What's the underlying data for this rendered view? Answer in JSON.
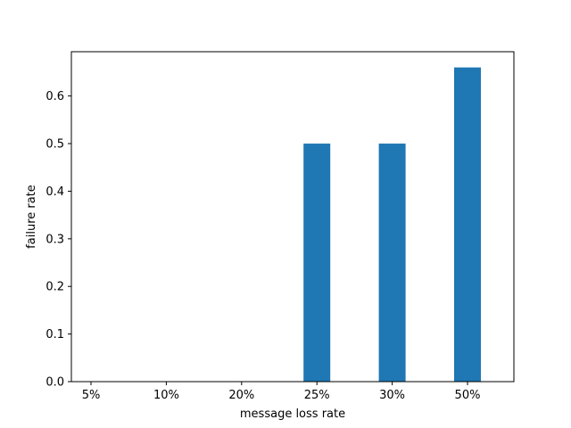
{
  "chart_data": {
    "type": "bar",
    "title": "",
    "xlabel": "message loss rate",
    "ylabel": "failure rate",
    "categories": [
      "5%",
      "10%",
      "20%",
      "25%",
      "30%",
      "50%"
    ],
    "values": [
      0,
      0,
      0,
      0.5,
      0.5,
      0.66
    ],
    "ylim": [
      0,
      0.693
    ],
    "yticks": [
      "0.0",
      "0.1",
      "0.2",
      "0.3",
      "0.4",
      "0.5",
      "0.6"
    ],
    "bar_color": "#1f77b4",
    "grid": false,
    "legend": "none"
  }
}
